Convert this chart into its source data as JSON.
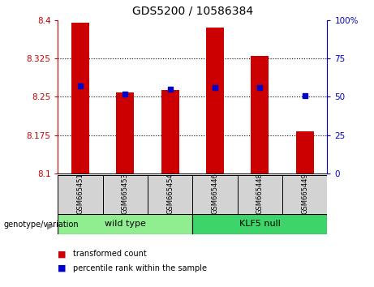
{
  "title": "GDS5200 / 10586384",
  "samples": [
    "GSM665451",
    "GSM665453",
    "GSM665454",
    "GSM665446",
    "GSM665448",
    "GSM665449"
  ],
  "red_values": [
    8.395,
    8.258,
    8.263,
    8.385,
    8.33,
    8.183
  ],
  "blue_percentiles": [
    57,
    52,
    55,
    56,
    56,
    51
  ],
  "ylim_left": [
    8.1,
    8.4
  ],
  "ylim_right": [
    0,
    100
  ],
  "yticks_left": [
    8.1,
    8.175,
    8.25,
    8.325,
    8.4
  ],
  "yticks_right": [
    0,
    25,
    50,
    75,
    100
  ],
  "ytick_labels_left": [
    "8.1",
    "8.175",
    "8.25",
    "8.325",
    "8.4"
  ],
  "ytick_labels_right": [
    "0",
    "25",
    "50",
    "75",
    "100%"
  ],
  "groups": [
    {
      "label": "wild type",
      "indices": [
        0,
        1,
        2
      ],
      "color": "#90EE90"
    },
    {
      "label": "KLF5 null",
      "indices": [
        3,
        4,
        5
      ],
      "color": "#3DD46A"
    }
  ],
  "group_label_prefix": "genotype/variation",
  "legend": [
    {
      "color": "#CC0000",
      "label": "transformed count"
    },
    {
      "color": "#0000CC",
      "label": "percentile rank within the sample"
    }
  ],
  "bar_color": "#CC0000",
  "dot_color": "#0000CC",
  "bar_width": 0.4,
  "left_tick_color": "#CC0000",
  "right_tick_color": "#0000CC",
  "sample_box_color": "#D3D3D3",
  "grid_linestyle": "dotted"
}
